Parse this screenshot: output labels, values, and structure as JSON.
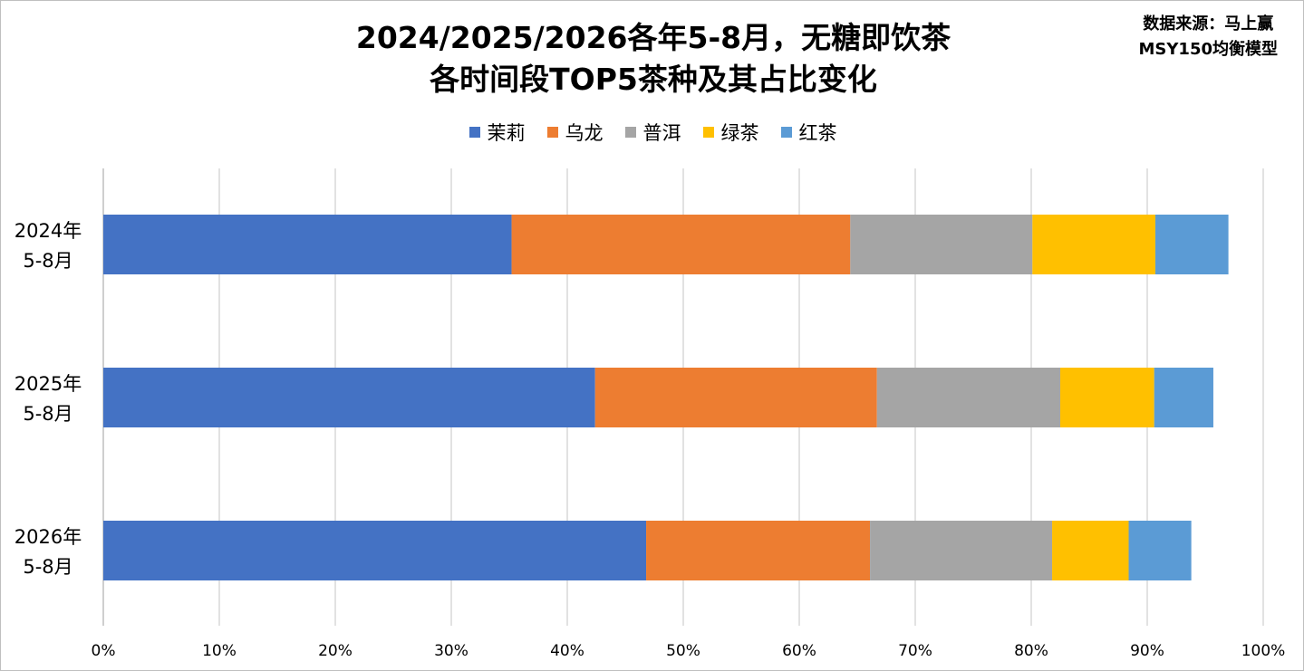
{
  "title_lines": [
    "2024/2025/2026各年5-8月，无糖即饮茶",
    "各时间段TOP5茶种及其占比变化"
  ],
  "source_lines": [
    "数据来源：马上赢",
    "MSY150均衡模型"
  ],
  "chart_data": {
    "type": "bar",
    "orientation": "horizontal",
    "stacked": true,
    "title": "2024/2025/2026各年5-8月，无糖即饮茶各时间段TOP5茶种及其占比变化",
    "categories": [
      [
        "2024年",
        "5-8月"
      ],
      [
        "2025年",
        "5-8月"
      ],
      [
        "2026年",
        "5-8月"
      ]
    ],
    "series": [
      {
        "name": "茉莉",
        "color": "#4472C4",
        "values": [
          35.2,
          42.4,
          46.8
        ]
      },
      {
        "name": "乌龙",
        "color": "#ED7D31",
        "values": [
          29.2,
          24.3,
          19.3
        ]
      },
      {
        "name": "普洱",
        "color": "#A5A5A5",
        "values": [
          15.7,
          15.8,
          15.7
        ]
      },
      {
        "name": "绿茶",
        "color": "#FFC000",
        "values": [
          10.6,
          8.1,
          6.6
        ]
      },
      {
        "name": "红茶",
        "color": "#5B9BD5",
        "values": [
          6.3,
          5.1,
          5.4
        ]
      }
    ],
    "x_ticks": [
      "0%",
      "10%",
      "20%",
      "30%",
      "40%",
      "50%",
      "60%",
      "70%",
      "80%",
      "90%",
      "100%"
    ],
    "xlim": [
      0,
      100
    ],
    "grid": "vertical",
    "legend": "top-center"
  }
}
